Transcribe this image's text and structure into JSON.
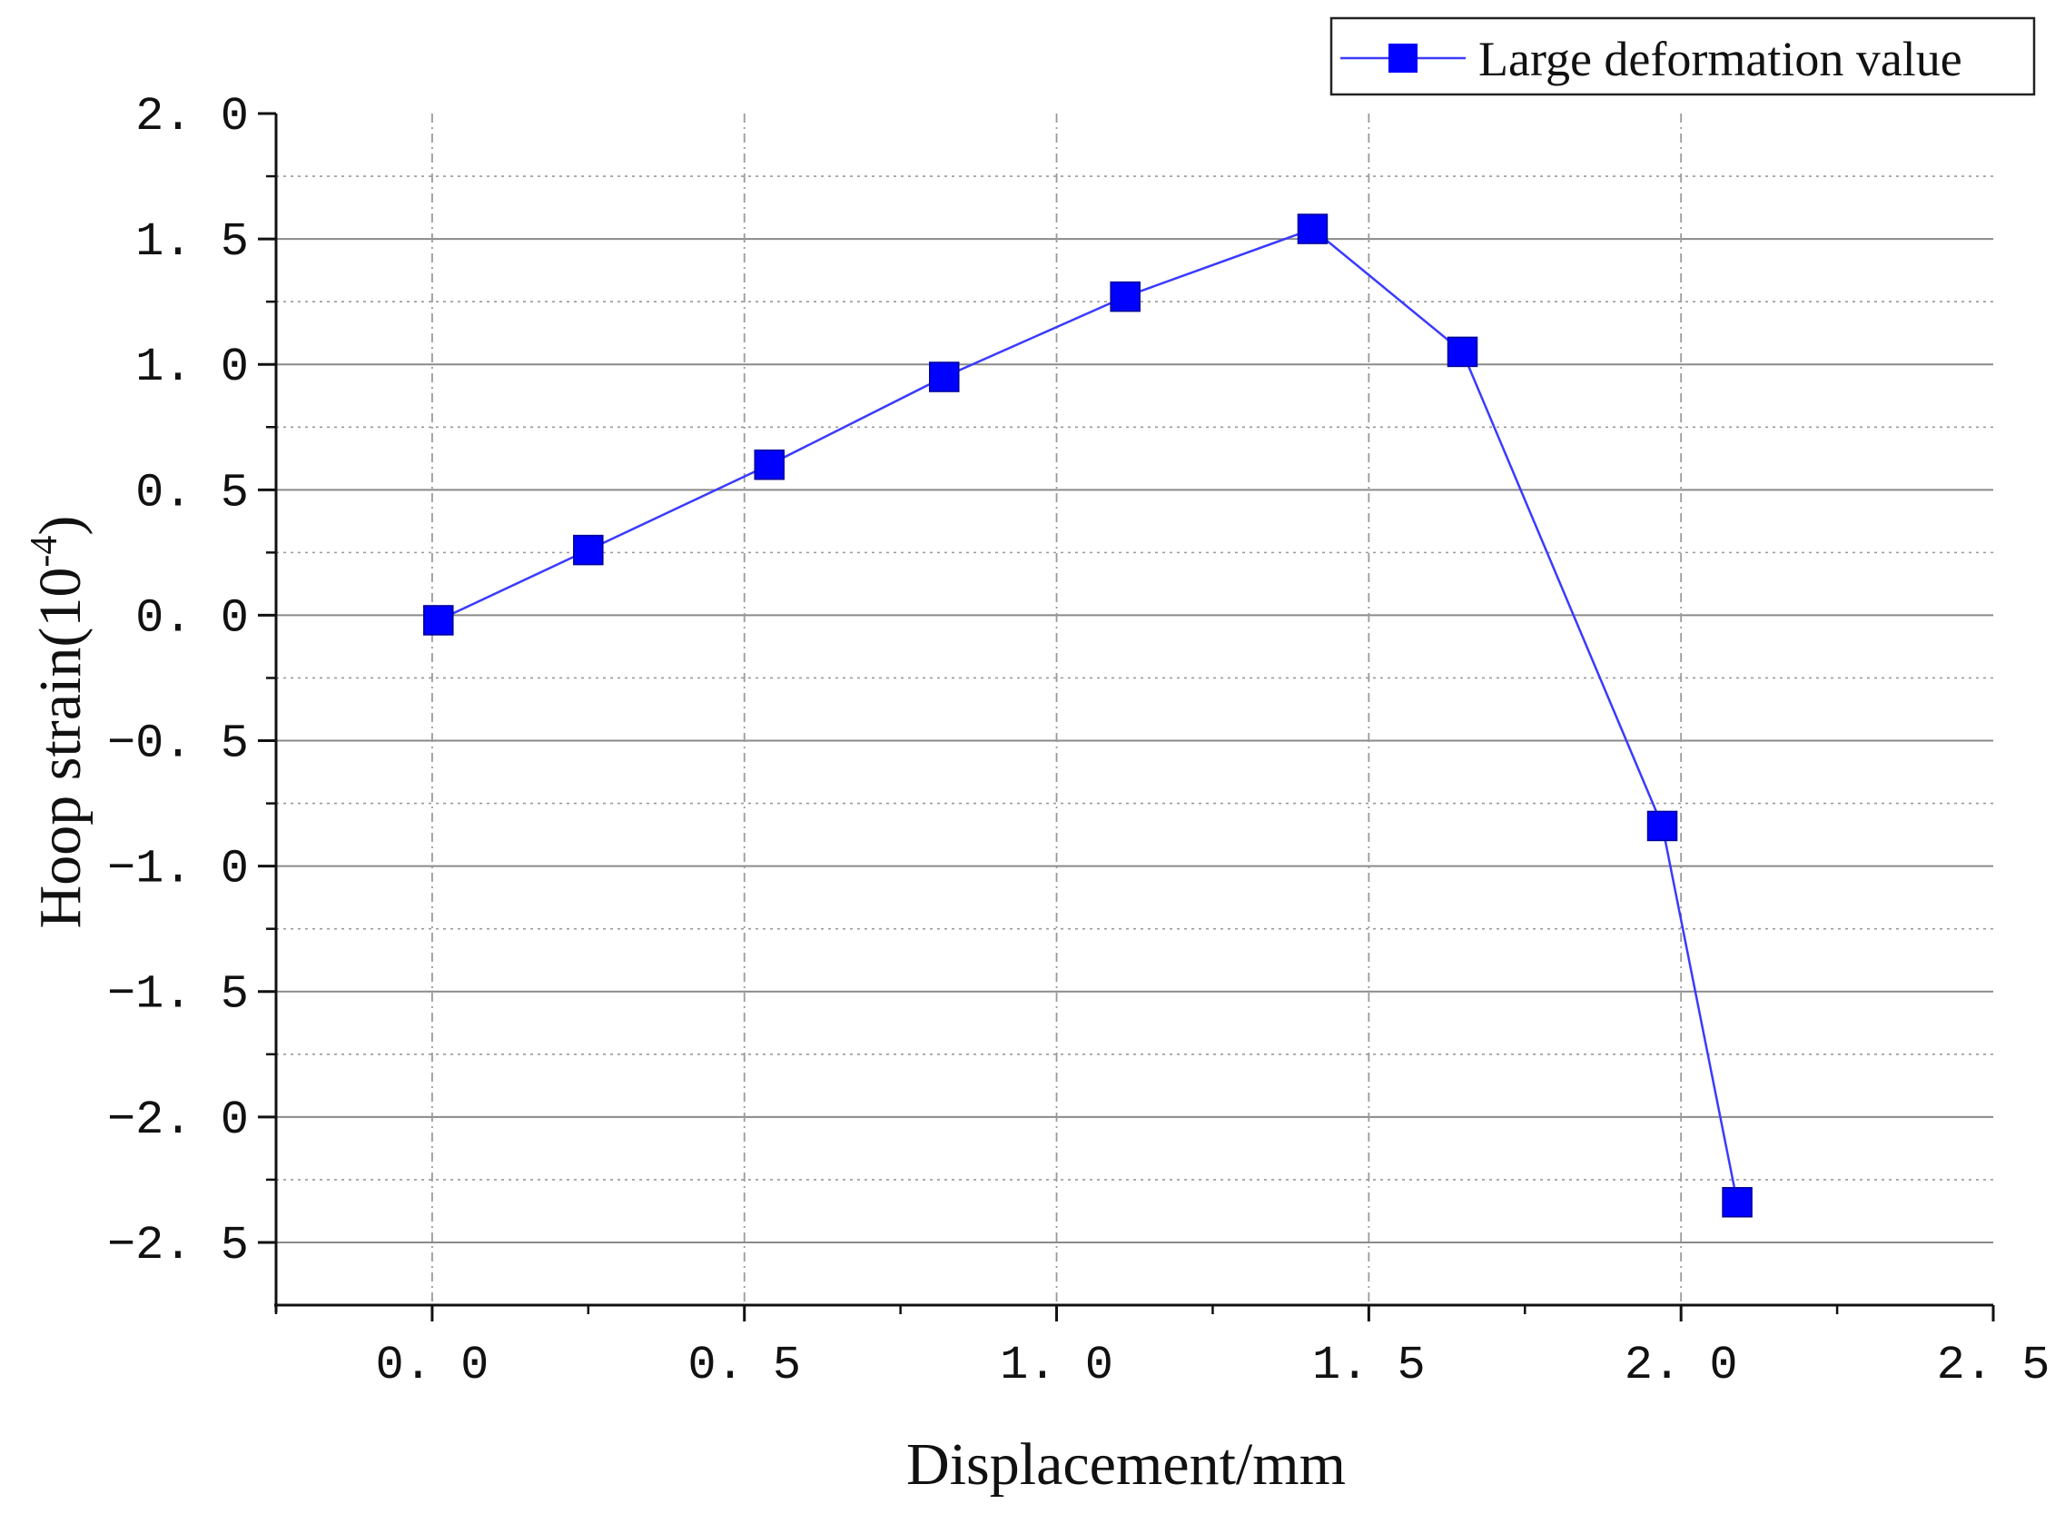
{
  "chart_data": {
    "type": "line",
    "title": "",
    "xlabel": "Displacement/mm",
    "ylabel": "Hoop strain(10",
    "ylabel_sup": "-4",
    "ylabel_close": ")",
    "xlim": [
      -0.25,
      2.5
    ],
    "ylim": [
      -2.75,
      2.0
    ],
    "x_ticks": [
      0.0,
      0.5,
      1.0,
      1.5,
      2.0,
      2.5
    ],
    "x_tick_labels": [
      "0. 0",
      "0. 5",
      "1. 0",
      "1. 5",
      "2. 0",
      "2. 5"
    ],
    "y_ticks": [
      2.0,
      1.5,
      1.0,
      0.5,
      0.0,
      -0.5,
      -1.0,
      -1.5,
      -2.0,
      -2.5
    ],
    "y_tick_labels": [
      "2. 0",
      "1. 5",
      "1. 0",
      "0. 5",
      "0. 0",
      "−0. 5",
      "−1. 0",
      "−1. 5",
      "−2. 0",
      "−2. 5"
    ],
    "grid": true,
    "legend_position": "top-right",
    "series": [
      {
        "name": "Large deformation value",
        "color": "#0000ff",
        "marker": "square",
        "x": [
          0.01,
          0.25,
          0.54,
          0.82,
          1.11,
          1.41,
          1.65,
          1.97,
          2.09
        ],
        "y": [
          -0.02,
          0.26,
          0.6,
          0.95,
          1.27,
          1.54,
          1.05,
          -0.84,
          -2.34
        ]
      }
    ]
  }
}
